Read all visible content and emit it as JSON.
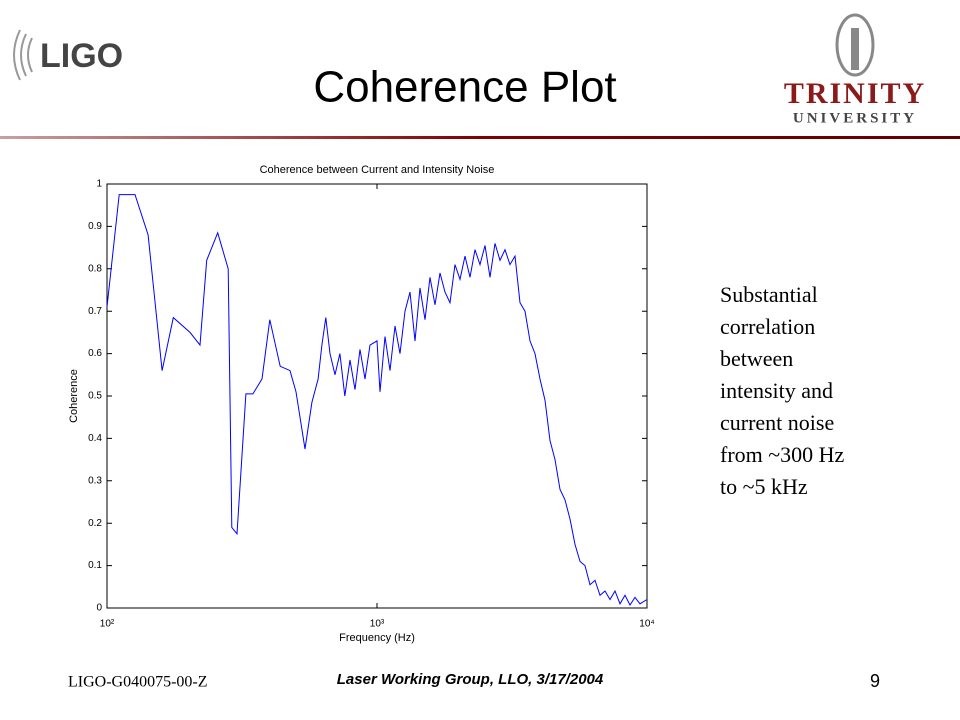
{
  "logos": {
    "left": "LIGO",
    "right_top": "TRINITY",
    "right_bottom": "UNIVERSITY"
  },
  "title": "Coherence Plot",
  "note_lines": [
    "Substantial",
    "correlation",
    "between",
    "intensity and",
    "current noise",
    "from ~300 Hz",
    "to ~5 kHz"
  ],
  "footer": {
    "left": "LIGO-G040075-00-Z",
    "center": "Laser Working Group, LLO, 3/17/2004",
    "page": "9"
  },
  "chart_data": {
    "type": "line",
    "title": "Coherence between Current and Intensity Noise",
    "x_label": "Frequency (Hz)",
    "y_label": "Coherence",
    "log_x": true,
    "xlim": [
      100,
      10000
    ],
    "xticks": [
      {
        "value": 100,
        "label": "10²"
      },
      {
        "value": 1000,
        "label": "10³"
      },
      {
        "value": 10000,
        "label": "10⁴"
      }
    ],
    "ylim": [
      0,
      1
    ],
    "yticks": [
      0,
      0.1,
      0.2,
      0.3,
      0.4,
      0.5,
      0.6,
      0.7,
      0.8,
      0.9,
      1
    ],
    "x": [
      100,
      111,
      127,
      142,
      160,
      176,
      203,
      221,
      234,
      257,
      281,
      290,
      303,
      327,
      347,
      375,
      401,
      438,
      476,
      501,
      541,
      574,
      605,
      625,
      646,
      670,
      699,
      729,
      760,
      794,
      829,
      865,
      903,
      942,
      1000,
      1026,
      1071,
      1117,
      1166,
      1217,
      1270,
      1325,
      1383,
      1443,
      1506,
      1571,
      1640,
      1711,
      1786,
      1863,
      1945,
      2029,
      2118,
      2210,
      2306,
      2407,
      2512,
      2621,
      2735,
      2855,
      2979,
      3109,
      3244,
      3385,
      3532,
      3686,
      3847,
      4014,
      4189,
      4372,
      4562,
      4761,
      4968,
      5185,
      5410,
      5646,
      5892,
      6149,
      6416,
      6696,
      6988,
      7292,
      7610,
      7941,
      8287,
      8648,
      9025,
      9418,
      10000
    ],
    "series": [
      {
        "name": "Coherence",
        "color": "#0000ff",
        "values": [
          0.71,
          0.975,
          0.975,
          0.88,
          0.56,
          0.685,
          0.65,
          0.62,
          0.82,
          0.885,
          0.8,
          0.19,
          0.175,
          0.505,
          0.505,
          0.54,
          0.68,
          0.57,
          0.56,
          0.51,
          0.375,
          0.485,
          0.54,
          0.62,
          0.685,
          0.6,
          0.55,
          0.6,
          0.5,
          0.585,
          0.515,
          0.61,
          0.54,
          0.62,
          0.63,
          0.51,
          0.64,
          0.56,
          0.665,
          0.6,
          0.7,
          0.745,
          0.63,
          0.755,
          0.68,
          0.78,
          0.715,
          0.79,
          0.745,
          0.72,
          0.81,
          0.775,
          0.83,
          0.78,
          0.845,
          0.81,
          0.855,
          0.78,
          0.86,
          0.82,
          0.845,
          0.81,
          0.83,
          0.72,
          0.7,
          0.63,
          0.6,
          0.54,
          0.49,
          0.395,
          0.35,
          0.28,
          0.255,
          0.21,
          0.15,
          0.11,
          0.1,
          0.055,
          0.065,
          0.03,
          0.04,
          0.02,
          0.04,
          0.01,
          0.03,
          0.007,
          0.025,
          0.01,
          0.02
        ]
      }
    ]
  }
}
